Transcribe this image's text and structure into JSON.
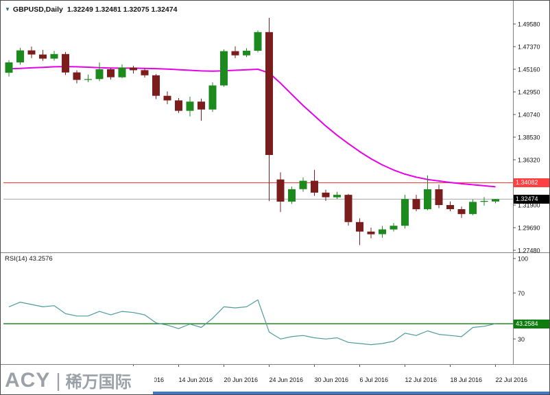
{
  "window_title": {
    "symbol": "GBPUSD,Daily",
    "ohlc_text": "1.32249 1.32481 1.32075 1.32474"
  },
  "indicator_label": "RSI(14) 43.2576",
  "price_tags": {
    "red_level": "1.34082",
    "current_bid": "1.32474",
    "rsi_level": "43.2584"
  },
  "logo": {
    "brand": "ACY",
    "divider": "|",
    "brand_cn": "稀万国际"
  },
  "colors": {
    "bull": "#1c8a1c",
    "bear": "#7b1d1d",
    "ma_line": "#e500e5",
    "rsi_line": "#4f9b9b",
    "level_red": "#ff4040",
    "level_green": "#0e7d0e",
    "current_black": "#000000",
    "current_price_line": "#a6a6a6",
    "panel_border": "#808080",
    "axis_text": "#111111",
    "logo_gray": "#9ba1a7",
    "bottom_strip_blue": "#3f76c8"
  },
  "chart_data": {
    "type": "candlestick",
    "symbol": "GBPUSD",
    "timeframe": "Daily",
    "ohlc_display": {
      "open": "1.32249",
      "high": "1.32481",
      "low": "1.32075",
      "close": "1.32474"
    },
    "y_axis": {
      "side": "right",
      "top_label_value": 1.4958,
      "label_step": 0.0221,
      "labels": [
        "1.49580",
        "1.47370",
        "1.45160",
        "1.42950",
        "1.40740",
        "1.38530",
        "1.36320",
        "1.31900",
        "1.29690",
        "1.27480"
      ]
    },
    "x_axis": {
      "labels": [
        {
          "i": 11,
          "text": "8 Jun 2016"
        },
        {
          "i": 15,
          "text": "14 Jun 2016"
        },
        {
          "i": 19,
          "text": "20 Jun 2016"
        },
        {
          "i": 23,
          "text": "24 Jun 2016"
        },
        {
          "i": 27,
          "text": "30 Jun 2016"
        },
        {
          "i": 31,
          "text": "6 Jul 2016"
        },
        {
          "i": 35,
          "text": "12 Jul 2016"
        },
        {
          "i": 39,
          "text": "18 Jul 2016"
        },
        {
          "i": 43,
          "text": "22 Jul 2016"
        }
      ]
    },
    "levels": {
      "red_horizontal_line": 1.34082,
      "current_price": 1.32474,
      "rsi_horizontal_line": 43.2584
    },
    "candles": [
      {
        "date": "24 May 2016",
        "o": 1.4482,
        "h": 1.4605,
        "l": 1.4445,
        "c": 1.4583
      },
      {
        "date": "25 May 2016",
        "o": 1.4583,
        "h": 1.4725,
        "l": 1.456,
        "c": 1.47
      },
      {
        "date": "26 May 2016",
        "o": 1.47,
        "h": 1.4738,
        "l": 1.4625,
        "c": 1.466
      },
      {
        "date": "27 May 2016",
        "o": 1.466,
        "h": 1.4705,
        "l": 1.4598,
        "c": 1.462
      },
      {
        "date": "30 May 2016",
        "o": 1.462,
        "h": 1.4695,
        "l": 1.46,
        "c": 1.4665
      },
      {
        "date": "31 May 2016",
        "o": 1.4665,
        "h": 1.4685,
        "l": 1.446,
        "c": 1.4485
      },
      {
        "date": "1 Jun 2016",
        "o": 1.4485,
        "h": 1.4505,
        "l": 1.4378,
        "c": 1.4412
      },
      {
        "date": "2 Jun 2016",
        "o": 1.4412,
        "h": 1.4465,
        "l": 1.439,
        "c": 1.442
      },
      {
        "date": "3 Jun 2016",
        "o": 1.442,
        "h": 1.4582,
        "l": 1.44,
        "c": 1.4516
      },
      {
        "date": "6 Jun 2016",
        "o": 1.4516,
        "h": 1.453,
        "l": 1.4415,
        "c": 1.4438
      },
      {
        "date": "7 Jun 2016",
        "o": 1.4438,
        "h": 1.4565,
        "l": 1.4428,
        "c": 1.4533
      },
      {
        "date": "8 Jun 2016",
        "o": 1.4533,
        "h": 1.455,
        "l": 1.4475,
        "c": 1.4507
      },
      {
        "date": "9 Jun 2016",
        "o": 1.4507,
        "h": 1.4525,
        "l": 1.4435,
        "c": 1.4457
      },
      {
        "date": "10 Jun 2016",
        "o": 1.4457,
        "h": 1.447,
        "l": 1.4225,
        "c": 1.4257
      },
      {
        "date": "13 Jun 2016",
        "o": 1.4257,
        "h": 1.43,
        "l": 1.4175,
        "c": 1.4212
      },
      {
        "date": "14 Jun 2016",
        "o": 1.4212,
        "h": 1.4235,
        "l": 1.4088,
        "c": 1.411
      },
      {
        "date": "15 Jun 2016",
        "o": 1.411,
        "h": 1.4248,
        "l": 1.4055,
        "c": 1.42
      },
      {
        "date": "16 Jun 2016",
        "o": 1.42,
        "h": 1.423,
        "l": 1.4013,
        "c": 1.4123
      },
      {
        "date": "17 Jun 2016",
        "o": 1.4123,
        "h": 1.4388,
        "l": 1.41,
        "c": 1.4358
      },
      {
        "date": "20 Jun 2016",
        "o": 1.4358,
        "h": 1.471,
        "l": 1.4345,
        "c": 1.4693
      },
      {
        "date": "21 Jun 2016",
        "o": 1.4693,
        "h": 1.474,
        "l": 1.4625,
        "c": 1.4652
      },
      {
        "date": "22 Jun 2016",
        "o": 1.4652,
        "h": 1.4722,
        "l": 1.4635,
        "c": 1.4697
      },
      {
        "date": "23 Jun 2016",
        "o": 1.4697,
        "h": 1.4895,
        "l": 1.468,
        "c": 1.4879
      },
      {
        "date": "24 Jun 2016",
        "o": 1.4879,
        "h": 1.5018,
        "l": 1.3228,
        "c": 1.3679
      },
      {
        "date": "27 Jun 2016",
        "o": 1.344,
        "h": 1.351,
        "l": 1.3121,
        "c": 1.3224
      },
      {
        "date": "28 Jun 2016",
        "o": 1.3224,
        "h": 1.337,
        "l": 1.32,
        "c": 1.3345
      },
      {
        "date": "29 Jun 2016",
        "o": 1.3345,
        "h": 1.346,
        "l": 1.332,
        "c": 1.3427
      },
      {
        "date": "30 Jun 2016",
        "o": 1.3427,
        "h": 1.3534,
        "l": 1.328,
        "c": 1.3311
      },
      {
        "date": "1 Jul 2016",
        "o": 1.3311,
        "h": 1.334,
        "l": 1.323,
        "c": 1.3266
      },
      {
        "date": "4 Jul 2016",
        "o": 1.3266,
        "h": 1.332,
        "l": 1.325,
        "c": 1.329
      },
      {
        "date": "5 Jul 2016",
        "o": 1.329,
        "h": 1.33,
        "l": 1.299,
        "c": 1.3024
      },
      {
        "date": "6 Jul 2016",
        "o": 1.3024,
        "h": 1.306,
        "l": 1.2798,
        "c": 1.2931
      },
      {
        "date": "7 Jul 2016",
        "o": 1.2931,
        "h": 1.297,
        "l": 1.2865,
        "c": 1.2905
      },
      {
        "date": "8 Jul 2016",
        "o": 1.2905,
        "h": 1.2985,
        "l": 1.287,
        "c": 1.2952
      },
      {
        "date": "11 Jul 2016",
        "o": 1.2952,
        "h": 1.3015,
        "l": 1.2932,
        "c": 1.2988
      },
      {
        "date": "12 Jul 2016",
        "o": 1.2988,
        "h": 1.329,
        "l": 1.296,
        "c": 1.3249
      },
      {
        "date": "13 Jul 2016",
        "o": 1.3249,
        "h": 1.329,
        "l": 1.313,
        "c": 1.3149
      },
      {
        "date": "14 Jul 2016",
        "o": 1.3149,
        "h": 1.348,
        "l": 1.314,
        "c": 1.3344
      },
      {
        "date": "15 Jul 2016",
        "o": 1.3344,
        "h": 1.339,
        "l": 1.316,
        "c": 1.319
      },
      {
        "date": "18 Jul 2016",
        "o": 1.319,
        "h": 1.3225,
        "l": 1.313,
        "c": 1.315
      },
      {
        "date": "19 Jul 2016",
        "o": 1.315,
        "h": 1.3175,
        "l": 1.3065,
        "c": 1.3102
      },
      {
        "date": "20 Jul 2016",
        "o": 1.3102,
        "h": 1.3245,
        "l": 1.309,
        "c": 1.3221
      },
      {
        "date": "21 Jul 2016",
        "o": 1.3221,
        "h": 1.3268,
        "l": 1.3185,
        "c": 1.323
      },
      {
        "date": "22 Jul 2016",
        "o": 1.32249,
        "h": 1.32481,
        "l": 1.32075,
        "c": 1.32474
      }
    ],
    "ma": [
      1.452,
      1.4525,
      1.453,
      1.4535,
      1.454,
      1.4542,
      1.454,
      1.4536,
      1.4531,
      1.4528,
      1.4527,
      1.4527,
      1.4525,
      1.4522,
      1.4518,
      1.4512,
      1.4506,
      1.45,
      1.4498,
      1.4501,
      1.4506,
      1.4511,
      1.4516,
      1.448,
      1.438,
      1.427,
      1.4162,
      1.4062,
      1.3962,
      1.3872,
      1.379,
      1.3712,
      1.3642,
      1.3582,
      1.3532,
      1.3492,
      1.3462,
      1.344,
      1.3425,
      1.341,
      1.3398,
      1.3388,
      1.3378,
      1.3368
    ],
    "rsi": {
      "period": 14,
      "current_value": 43.2576,
      "scale_labels": [
        100,
        70,
        30
      ],
      "values": [
        58,
        62,
        60,
        58,
        59,
        52,
        50,
        50,
        54,
        51,
        54,
        53,
        51,
        44,
        42,
        39,
        43,
        40,
        48,
        58,
        57,
        58,
        64,
        36,
        30,
        32,
        33,
        31,
        30,
        31,
        27,
        26,
        25,
        26,
        28,
        35,
        33,
        37,
        34,
        33,
        32,
        40,
        41,
        43.2576
      ]
    }
  }
}
